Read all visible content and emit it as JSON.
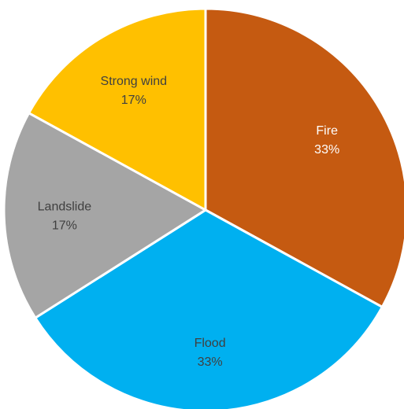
{
  "chart_data": {
    "type": "pie",
    "title": "",
    "slices": [
      {
        "label": "Fire",
        "pct_label": "33%",
        "value": 33,
        "color": "#c55a11",
        "text_color": "#ffffff"
      },
      {
        "label": "Flood",
        "pct_label": "33%",
        "value": 33,
        "color": "#00b0f0",
        "text_color": "#404040"
      },
      {
        "label": "Landslide",
        "pct_label": "17%",
        "value": 17,
        "color": "#a5a5a5",
        "text_color": "#404040"
      },
      {
        "label": "Strong wind",
        "pct_label": "17%",
        "value": 17,
        "color": "#ffc000",
        "text_color": "#404040"
      }
    ],
    "start_angle_deg": 0,
    "direction": "clockwise",
    "legend": "none"
  }
}
